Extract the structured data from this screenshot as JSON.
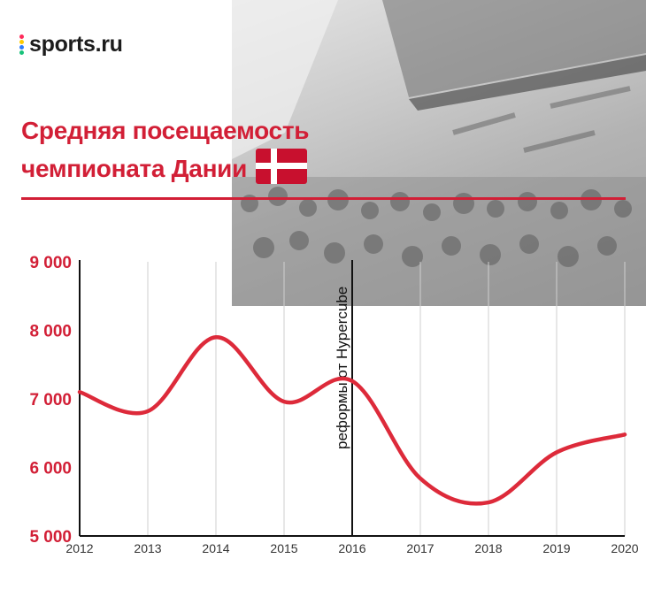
{
  "brand": {
    "name": "sports.ru",
    "dot_colors": [
      "#ff2a5a",
      "#ffcc00",
      "#2e7dff",
      "#17c27a"
    ]
  },
  "title": {
    "line1": "Средняя посещаемость",
    "line2": "чемпионата Дании"
  },
  "colors": {
    "accent": "#d21f36",
    "line": "#dd2a3a",
    "axis": "#111111",
    "grid": "#cfcfcf",
    "tick_y": "#d21f36",
    "tick_x": "#333333",
    "flag_red": "#c8102e",
    "flag_white": "#ffffff"
  },
  "chart_data": {
    "type": "line",
    "title": "Средняя посещаемость чемпионата Дании",
    "xlabel": "",
    "ylabel": "",
    "x": [
      "2012",
      "2013",
      "2014",
      "2015",
      "2016",
      "2017",
      "2018",
      "2019",
      "2020"
    ],
    "x_numeric": [
      2012,
      2013,
      2014,
      2015,
      2016,
      2017,
      2018,
      2019,
      2020
    ],
    "ylim": [
      5000,
      9000
    ],
    "yticks": [
      5000,
      6000,
      7000,
      8000,
      9000
    ],
    "ytick_labels": [
      "5 000",
      "6 000",
      "7 000",
      "8 000",
      "9 000"
    ],
    "grid": "vertical",
    "legend": "none",
    "series": [
      {
        "values": [
          7100,
          6820,
          7900,
          6960,
          7260,
          5840,
          5490,
          6220,
          6480
        ]
      }
    ],
    "annotations": [
      {
        "x": 2016,
        "text": "реформы от Hypercube",
        "orientation": "vertical"
      }
    ]
  }
}
